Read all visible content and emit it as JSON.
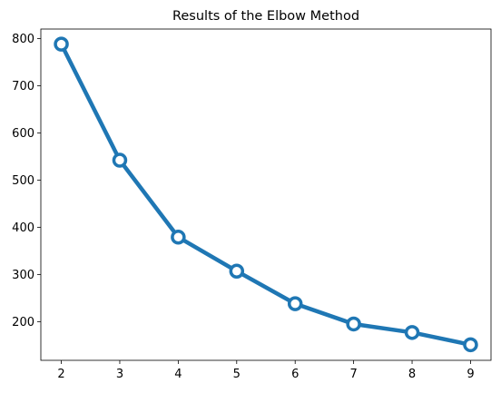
{
  "chart_data": {
    "type": "line",
    "title": "Results of the Elbow Method",
    "xlabel": "",
    "ylabel": "",
    "x": [
      2,
      3,
      4,
      5,
      6,
      7,
      8,
      9
    ],
    "series": [
      {
        "values": [
          788,
          542,
          379,
          307,
          238,
          195,
          177,
          151
        ]
      }
    ],
    "xlim": [
      1.65,
      9.35
    ],
    "ylim": [
      118,
      820
    ],
    "xticks": [
      2,
      3,
      4,
      5,
      6,
      7,
      8,
      9
    ],
    "yticks": [
      200,
      300,
      400,
      500,
      600,
      700,
      800
    ],
    "grid": false,
    "line_color": "#1f77b4",
    "marker": "open-circle",
    "marker_fill": "#ffffff"
  }
}
